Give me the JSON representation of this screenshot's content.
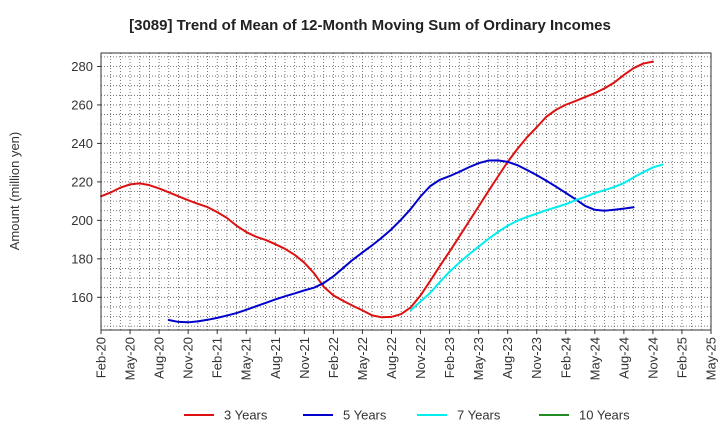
{
  "chart_data": {
    "type": "line",
    "title": "[3089]  Trend of Mean of 12-Month Moving Sum of Ordinary Incomes",
    "xlabel": "",
    "ylabel": "Amount (million yen)",
    "ylim": [
      143,
      287
    ],
    "yticks": [
      160,
      180,
      200,
      220,
      240,
      260,
      280
    ],
    "xlim": [
      0,
      63
    ],
    "xtick_positions": [
      0,
      3,
      6,
      9,
      12,
      15,
      18,
      21,
      24,
      27,
      30,
      33,
      36,
      39,
      42,
      45,
      48,
      51,
      54,
      57,
      60,
      63
    ],
    "xtick_labels": [
      "Feb-20",
      "May-20",
      "Aug-20",
      "Nov-20",
      "Feb-21",
      "May-21",
      "Aug-21",
      "Nov-21",
      "Feb-22",
      "May-22",
      "Aug-22",
      "Nov-22",
      "Feb-23",
      "May-23",
      "Aug-23",
      "Nov-23",
      "Feb-24",
      "May-24",
      "Aug-24",
      "Nov-24",
      "Feb-25",
      "May-25"
    ],
    "grid": true,
    "legend_position": "bottom",
    "series": [
      {
        "name": "3 Years",
        "color": "#dd1111",
        "start": 0,
        "values": [
          212.5,
          214.5,
          217,
          218.7,
          219.2,
          218.3,
          216.6,
          214.6,
          212.5,
          210.5,
          208.6,
          206.9,
          204.3,
          201.3,
          197.2,
          193.9,
          191.5,
          189.8,
          187.6,
          185.2,
          182.1,
          178,
          172.5,
          165.5,
          161,
          158.2,
          155.6,
          153.2,
          150.6,
          149.6,
          149.8,
          151.3,
          154.8,
          161,
          168.5,
          176.3,
          183.8,
          191.5,
          199.4,
          207.2,
          215.1,
          222.8,
          230.4,
          237.1,
          243.2,
          248.4,
          253.9,
          257.5,
          260.1,
          262,
          264.1,
          266.1,
          268.6,
          271.6,
          275.6,
          279.1,
          281.5,
          282.5
        ]
      },
      {
        "name": "5 Years",
        "color": "#0000cc",
        "start": 7,
        "values": [
          148.2,
          147.2,
          147,
          147.5,
          148.3,
          149.3,
          150.5,
          151.8,
          153.5,
          155.3,
          157.1,
          158.9,
          160.5,
          162,
          163.6,
          165,
          167.4,
          170.9,
          175.2,
          179.5,
          183.3,
          187,
          191,
          195.4,
          200.4,
          206,
          212.4,
          217.8,
          221.1,
          223,
          225.2,
          227.6,
          229.7,
          231.1,
          231.2,
          230.4,
          228.7,
          226.2,
          223.5,
          220.6,
          217.5,
          214.3,
          211,
          207.5,
          205.5,
          205,
          205.5,
          206.1,
          206.8
        ]
      },
      {
        "name": "7 Years",
        "color": "#00eeee",
        "start": 32,
        "values": [
          153.3,
          157.8,
          162.3,
          168,
          173.3,
          178,
          182.3,
          186.3,
          190.3,
          194,
          197.2,
          199.8,
          201.8,
          203.5,
          205.3,
          206.8,
          208.4,
          210.5,
          212.2,
          214.2,
          215.7,
          217.3,
          219.4,
          222.3,
          225,
          227.5,
          229
        ]
      },
      {
        "name": "10 Years",
        "color": "#228b22",
        "start": 0,
        "values": []
      }
    ]
  }
}
